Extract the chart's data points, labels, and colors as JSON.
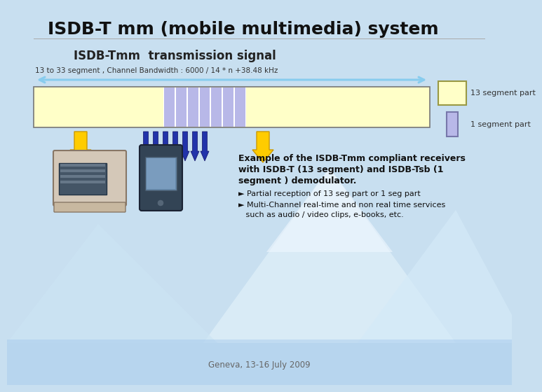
{
  "title": "ISDB-T mm (mobile multimedia) system",
  "subtitle": "ISDB-Tmm  transmission signal",
  "channel_label": "13 to 33 segment , Channel Bandwidth : 6000 / 14 * n +38.48 kHz",
  "legend_13seg": "13 segment part",
  "legend_1seg": "1 segment part",
  "example_title_line1": "Example of the ISDB-Tmm compliant receivers",
  "example_title_line2": "with ISDB-T (13 segment) and ISDB-Tsb (1",
  "example_title_line3": "segment ) demodulator.",
  "bullet1": "► Partial reception of 13 seg part or 1 seg part",
  "bullet2": "► Multi-Channel real-time and non real time services",
  "bullet2b": "   such as audio / video clips, e-books, etc.",
  "footer": "Geneva, 13-16 July 2009",
  "bg_top": "#c8dff0",
  "bg_bottom": "#b0cce8",
  "title_color": "#111111",
  "seg13_color": "#ffffc8",
  "seg13_border": "#aaaaaa",
  "seg1_color": "#b8b8e8",
  "seg1_border": "#8888bb",
  "arrow_color": "#88ccee",
  "yellow_arrow_color": "#ffcc00",
  "yellow_arrow_border": "#cc9900",
  "blue_arrow_color": "#2233aa",
  "blue_arrow_border": "#111166",
  "box13_color": "#ffffc8",
  "box13_border": "#999944",
  "box1_color": "#b8b8e8",
  "box1_border": "#7777aa"
}
